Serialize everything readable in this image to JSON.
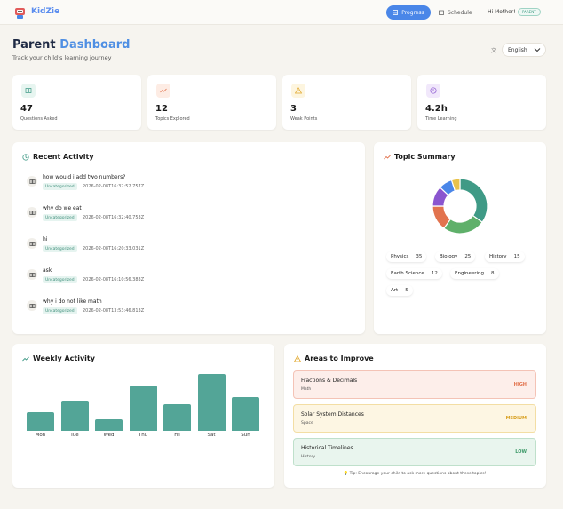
{
  "app": {
    "name": "KidZie"
  },
  "nav": {
    "progress": "Progress",
    "schedule": "Schedule",
    "greeting": "Hi Mother!",
    "role": "PARENT"
  },
  "page": {
    "title_part1": "Parent",
    "title_part2": "Dashboard",
    "subtitle": "Track your child's learning journey"
  },
  "language": {
    "selected": "English"
  },
  "stats": [
    {
      "value": "47",
      "label": "Questions Asked",
      "icon": "book-icon",
      "color": "#3f9a86",
      "bg": "#e7f5f0"
    },
    {
      "value": "12",
      "label": "Topics Explored",
      "icon": "trending-icon",
      "color": "#e2734e",
      "bg": "#fdece4"
    },
    {
      "value": "3",
      "label": "Weak Points",
      "icon": "warning-icon",
      "color": "#e0a526",
      "bg": "#fdf5df"
    },
    {
      "value": "4.2h",
      "label": "Time Learning",
      "icon": "clock-icon",
      "color": "#8a55cf",
      "bg": "#f1e8fb"
    }
  ],
  "recent_activity": {
    "title": "Recent Activity",
    "items": [
      {
        "question": "how would i add two numbers?",
        "tag": "Uncategorized",
        "time": "2026-02-08T16:32:52.757Z"
      },
      {
        "question": "why do we eat",
        "tag": "Uncategorized",
        "time": "2026-02-08T16:32:40.753Z"
      },
      {
        "question": "hi",
        "tag": "Uncategorized",
        "time": "2026-02-08T16:20:33.031Z"
      },
      {
        "question": "ask",
        "tag": "Uncategorized",
        "time": "2026-02-08T16:10:56.383Z"
      },
      {
        "question": "why i do not like math",
        "tag": "Uncategorized",
        "time": "2026-02-08T13:53:46.813Z"
      }
    ]
  },
  "topic_summary": {
    "title": "Topic Summary",
    "topics": [
      {
        "name": "Physics",
        "count": "35"
      },
      {
        "name": "Biology",
        "count": "25"
      },
      {
        "name": "History",
        "count": "15"
      },
      {
        "name": "Earth Science",
        "count": "12"
      },
      {
        "name": "Engineering",
        "count": "8"
      },
      {
        "name": "Art",
        "count": "5"
      }
    ],
    "colors": [
      "#3f9a86",
      "#5fb06a",
      "#e2734e",
      "#8a55cf",
      "#4a86e8",
      "#e8c24a"
    ]
  },
  "weekly_activity": {
    "title": "Weekly Activity"
  },
  "chart_data": {
    "type": "bar",
    "categories": [
      "Mon",
      "Tue",
      "Wed",
      "Thu",
      "Fri",
      "Sat",
      "Sun"
    ],
    "values": [
      2.5,
      4,
      1.5,
      6,
      3.5,
      7.5,
      4.5
    ],
    "title": "Weekly Activity",
    "color": "#53a597"
  },
  "areas": {
    "title": "Areas to Improve",
    "items": [
      {
        "title": "Fractions & Decimals",
        "subject": "Math",
        "level": "HIGH",
        "bg": "#fdeeea",
        "border": "#f4c3b6",
        "color": "#e2734e"
      },
      {
        "title": "Solar System Distances",
        "subject": "Space",
        "level": "MEDIUM",
        "bg": "#fdf6e3",
        "border": "#f3dea4",
        "color": "#d8a021"
      },
      {
        "title": "Historical Timelines",
        "subject": "History",
        "level": "LOW",
        "bg": "#e9f5ee",
        "border": "#bfe0cb",
        "color": "#3f9a6a"
      }
    ],
    "tip": "Tip: Encourage your child to ask more questions about these topics!"
  }
}
